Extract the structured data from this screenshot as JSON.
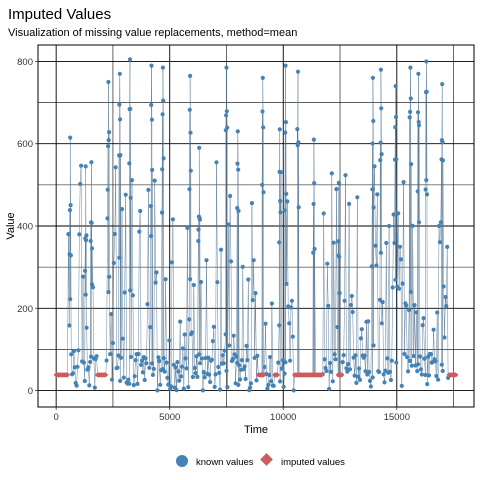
{
  "chart_data": {
    "type": "scatter",
    "title": "Imputed Values",
    "subtitle": "Visualization of missing value replacements, method=mean",
    "xlabel": "Time",
    "ylabel": "Value",
    "xlim": [
      -800,
      18400
    ],
    "ylim": [
      -40,
      840
    ],
    "x_ticks": [
      0,
      5000,
      10000,
      15000
    ],
    "x_tick_labels": [
      "0",
      "5000",
      "10000",
      "15000"
    ],
    "y_ticks": [
      0,
      200,
      400,
      600,
      800
    ],
    "y_tick_labels": [
      "0",
      "200",
      "400",
      "600",
      "800"
    ],
    "grid": true,
    "legend_position": "bottom",
    "imputed_value": 38,
    "colors": {
      "known": "#4682b4",
      "imputed": "#cd5c5c",
      "grid": "#000000"
    },
    "series": [
      {
        "name": "known values",
        "marker": "circle",
        "x_range": [
          500,
          17400
        ],
        "note_pattern": "dense spikes to 750-800 with many low values near 0-100",
        "peaks": [
          {
            "x": 620,
            "y": 615
          },
          {
            "x": 1300,
            "y": 545
          },
          {
            "x": 1550,
            "y": 555
          },
          {
            "x": 2300,
            "y": 750
          },
          {
            "x": 2800,
            "y": 770
          },
          {
            "x": 3250,
            "y": 805
          },
          {
            "x": 4200,
            "y": 790
          },
          {
            "x": 4700,
            "y": 785
          },
          {
            "x": 5900,
            "y": 765
          },
          {
            "x": 6300,
            "y": 590
          },
          {
            "x": 7500,
            "y": 785
          },
          {
            "x": 8000,
            "y": 630
          },
          {
            "x": 9100,
            "y": 760
          },
          {
            "x": 9850,
            "y": 635
          },
          {
            "x": 10100,
            "y": 790
          },
          {
            "x": 10650,
            "y": 775
          },
          {
            "x": 11350,
            "y": 610
          },
          {
            "x": 12450,
            "y": 505
          },
          {
            "x": 13950,
            "y": 760
          },
          {
            "x": 14300,
            "y": 780
          },
          {
            "x": 14950,
            "y": 740
          },
          {
            "x": 15600,
            "y": 785
          },
          {
            "x": 15950,
            "y": 770
          },
          {
            "x": 16300,
            "y": 800
          },
          {
            "x": 17000,
            "y": 745
          }
        ]
      },
      {
        "name": "imputed values",
        "marker": "diamond",
        "value": 38,
        "segments": [
          [
            0,
            500
          ],
          [
            1800,
            2200
          ],
          [
            8900,
            9150
          ],
          [
            9600,
            9750
          ],
          [
            10500,
            11700
          ],
          [
            12400,
            12600
          ],
          [
            17300,
            17600
          ]
        ]
      }
    ]
  }
}
